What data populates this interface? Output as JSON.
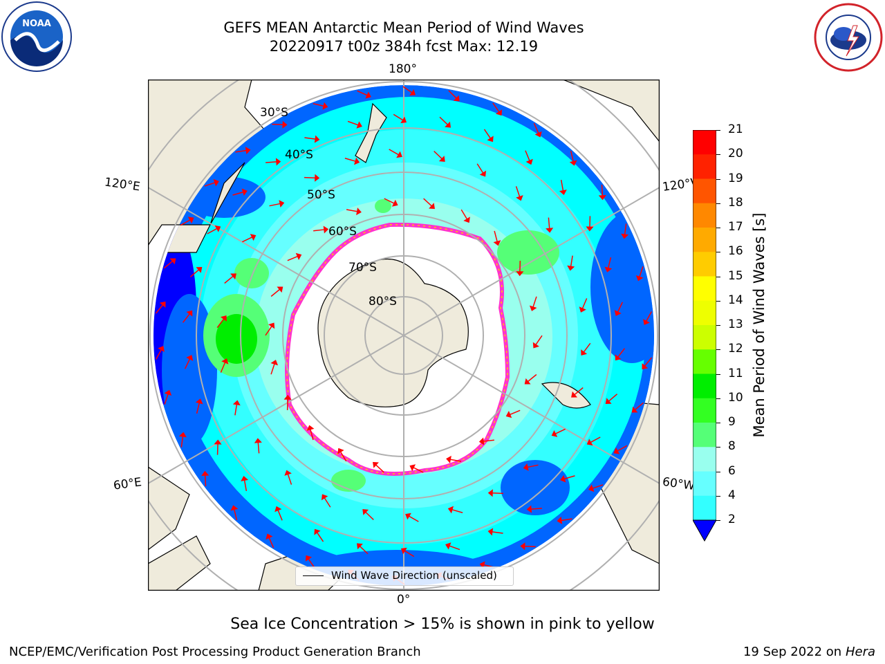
{
  "title": {
    "line1": "GEFS MEAN Antarctic Mean Period of Wind Waves",
    "line2": "20220917 t00z 384h fcst   Max: 12.19"
  },
  "map": {
    "projection": "south-polar-stereographic",
    "lon_labels": {
      "top": "180°",
      "bottom": "0°",
      "left_upper": "120°E",
      "left_lower": "60°E",
      "right_upper": "120°W",
      "right_lower": "60°W"
    },
    "lat_labels": [
      "30°S",
      "40°S",
      "50°S",
      "60°S",
      "70°S",
      "80°S"
    ],
    "colors": {
      "land": "#efebdc",
      "ocean_background": "#ffffff",
      "ice_edge": "#ff33cc",
      "arrows": "#ff0000"
    }
  },
  "legend": {
    "label": "Wind Wave Direction (unscaled)"
  },
  "colorbar": {
    "label": "Mean Period of Wind Waves [s]",
    "ticks": [
      "2",
      "4",
      "6",
      "8",
      "9",
      "10",
      "11",
      "12",
      "13",
      "14",
      "15",
      "16",
      "17",
      "18",
      "19",
      "20",
      "21"
    ],
    "colors": [
      "#0066ff",
      "#00ffff",
      "#33ffff",
      "#66ffff",
      "#99ffee",
      "#55ff77",
      "#33ff22",
      "#00ee00",
      "#66ff00",
      "#ccff00",
      "#eeff00",
      "#ffff00",
      "#ffcc00",
      "#ffaa00",
      "#ff8800",
      "#ff5500",
      "#ff2200",
      "#ff0000"
    ],
    "extend_color": "#0000ff"
  },
  "footnote": "Sea Ice Concentration > 15% is shown in pink to yellow",
  "credit": "NCEP/EMC/Verification Post Processing Product Generation Branch",
  "stamp": {
    "date": "19 Sep 2022 on",
    "host": "Hera"
  }
}
